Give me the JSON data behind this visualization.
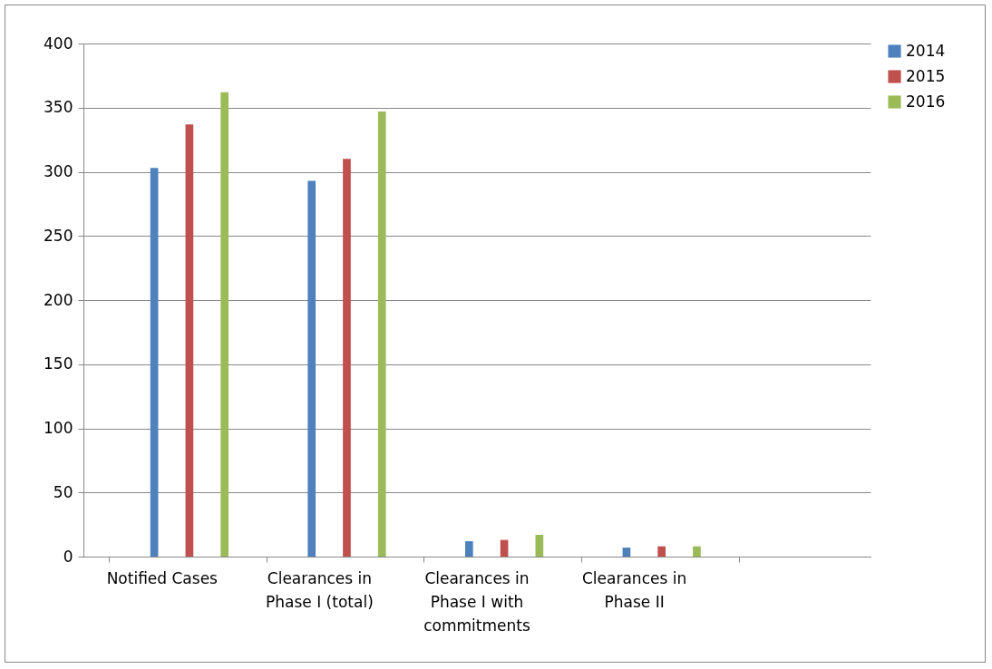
{
  "chart_data": {
    "type": "bar",
    "categories": [
      "Notified Cases",
      "Clearances in Phase I (total)",
      "Clearances in Phase I with commitments",
      "Clearances in Phase II",
      null
    ],
    "series": [
      {
        "name": "2014",
        "color": "#4f81bd",
        "values": [
          303,
          293,
          12,
          7,
          null
        ]
      },
      {
        "name": "2015",
        "color": "#c0504d",
        "values": [
          337,
          310,
          13,
          8,
          null
        ]
      },
      {
        "name": "2016",
        "color": "#9bbb59",
        "values": [
          362,
          347,
          17,
          8,
          null
        ]
      }
    ],
    "ylim": [
      0,
      400
    ],
    "yticks": [
      0,
      50,
      100,
      150,
      200,
      250,
      300,
      350,
      400
    ],
    "grid": "y",
    "legend": "right"
  }
}
